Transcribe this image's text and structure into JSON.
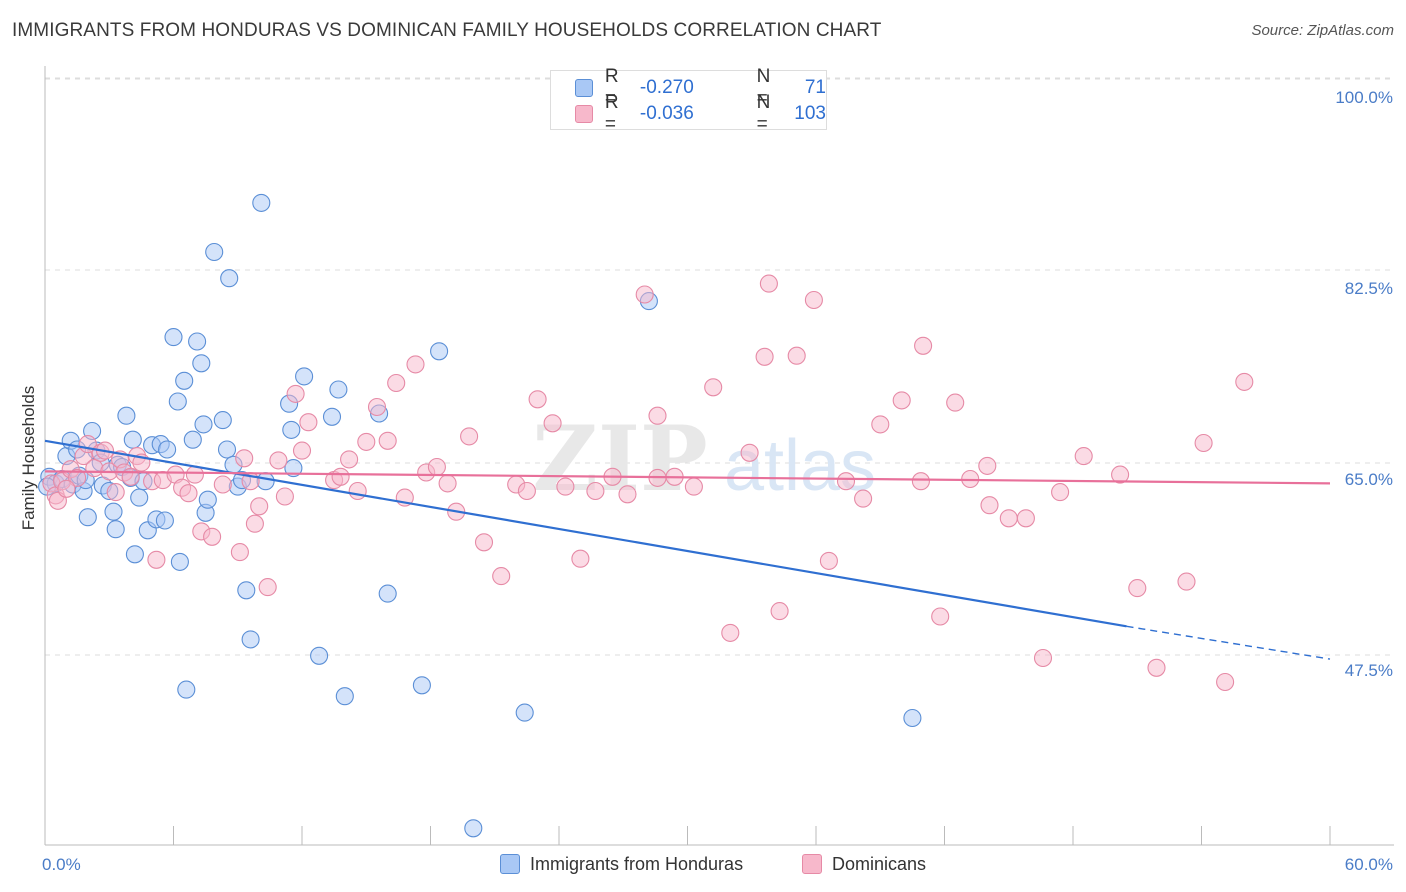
{
  "title": "IMMIGRANTS FROM HONDURAS VS DOMINICAN FAMILY HOUSEHOLDS CORRELATION CHART",
  "source": "Source: ZipAtlas.com",
  "watermark": {
    "zip": "ZIP",
    "atlas": "atlas"
  },
  "legend_top": [
    {
      "r_label": "R =",
      "r_value": "-0.270",
      "n_label": "N =",
      "n_value": "71"
    },
    {
      "r_label": "R =",
      "r_value": "-0.036",
      "n_label": "N =",
      "n_value": "103"
    }
  ],
  "legend_bottom": [
    {
      "label": "Immigrants from Honduras"
    },
    {
      "label": "Dominicans"
    }
  ],
  "colors": {
    "blue_fill": "#a9c8f5",
    "blue_stroke": "#5b8fd6",
    "blue_line": "#2f6fd1",
    "pink_fill": "#f7b8cb",
    "pink_stroke": "#e68aa6",
    "pink_line": "#e8709a",
    "tick_text": "#4a7cc7",
    "grid": "#dddddd"
  },
  "chart_data": {
    "type": "scatter",
    "title": "IMMIGRANTS FROM HONDURAS VS DOMINICAN FAMILY HOUSEHOLDS CORRELATION CHART",
    "xlabel": "",
    "ylabel": "Family Households",
    "xlim": [
      0,
      60
    ],
    "ylim": [
      30,
      103
    ],
    "x_tick_labels": [
      "0.0%",
      "60.0%"
    ],
    "y_ticks": [
      47.5,
      65.0,
      82.5,
      100.0
    ],
    "y_tick_labels": [
      "47.5%",
      "65.0%",
      "82.5%",
      "100.0%"
    ],
    "grid": true,
    "legend_placement": "top-center",
    "series": [
      {
        "name": "Immigrants from Honduras",
        "color": "#a9c8f5",
        "trend": {
          "x": [
            0,
            50.5
          ],
          "y": [
            68.5,
            51.5
          ],
          "dashed_to_x": 60,
          "dashed_to_y": 48.5
        },
        "points": [
          [
            0.2,
            65.2
          ],
          [
            0.5,
            64.6
          ],
          [
            0.8,
            65.0
          ],
          [
            1.0,
            67.1
          ],
          [
            1.2,
            68.5
          ],
          [
            1.3,
            64.5
          ],
          [
            1.5,
            67.7
          ],
          [
            1.6,
            65.3
          ],
          [
            1.8,
            63.9
          ],
          [
            1.9,
            64.9
          ],
          [
            2.0,
            61.5
          ],
          [
            2.2,
            69.4
          ],
          [
            2.4,
            67.6
          ],
          [
            2.6,
            66.5
          ],
          [
            2.7,
            64.4
          ],
          [
            3.0,
            63.9
          ],
          [
            3.2,
            62.0
          ],
          [
            3.3,
            60.4
          ],
          [
            3.4,
            66.3
          ],
          [
            3.6,
            66.1
          ],
          [
            3.8,
            70.8
          ],
          [
            4.0,
            65.1
          ],
          [
            4.1,
            68.6
          ],
          [
            4.2,
            58.1
          ],
          [
            4.4,
            63.3
          ],
          [
            4.6,
            64.8
          ],
          [
            4.8,
            60.3
          ],
          [
            5.0,
            68.1
          ],
          [
            5.2,
            61.3
          ],
          [
            5.4,
            68.2
          ],
          [
            5.6,
            61.2
          ],
          [
            5.7,
            67.7
          ],
          [
            6.0,
            78.0
          ],
          [
            6.2,
            72.1
          ],
          [
            6.3,
            57.4
          ],
          [
            6.5,
            74.0
          ],
          [
            6.6,
            45.7
          ],
          [
            6.9,
            68.6
          ],
          [
            7.1,
            77.6
          ],
          [
            7.3,
            75.6
          ],
          [
            7.4,
            70.0
          ],
          [
            7.5,
            61.9
          ],
          [
            7.6,
            63.1
          ],
          [
            7.9,
            85.8
          ],
          [
            8.3,
            70.4
          ],
          [
            8.5,
            67.7
          ],
          [
            8.6,
            83.4
          ],
          [
            8.8,
            66.3
          ],
          [
            9.0,
            64.3
          ],
          [
            9.2,
            64.9
          ],
          [
            9.4,
            54.8
          ],
          [
            9.6,
            50.3
          ],
          [
            10.1,
            90.3
          ],
          [
            10.3,
            64.8
          ],
          [
            11.4,
            71.9
          ],
          [
            11.5,
            69.5
          ],
          [
            11.6,
            66.0
          ],
          [
            12.1,
            74.4
          ],
          [
            12.8,
            48.8
          ],
          [
            13.4,
            70.7
          ],
          [
            13.7,
            73.2
          ],
          [
            14.0,
            45.1
          ],
          [
            15.6,
            71.0
          ],
          [
            16.0,
            54.5
          ],
          [
            17.6,
            46.1
          ],
          [
            20.0,
            33.0
          ],
          [
            18.4,
            76.7
          ],
          [
            22.4,
            43.6
          ],
          [
            28.2,
            81.3
          ],
          [
            40.5,
            43.1
          ],
          [
            0.1,
            64.3
          ]
        ]
      },
      {
        "name": "Dominicans",
        "color": "#f7b8cb",
        "trend": {
          "x": [
            0,
            60
          ],
          "y": [
            65.7,
            64.6
          ]
        },
        "points": [
          [
            0.3,
            64.6
          ],
          [
            0.5,
            63.5
          ],
          [
            0.8,
            64.8
          ],
          [
            1.2,
            65.9
          ],
          [
            1.5,
            65.1
          ],
          [
            1.8,
            67.1
          ],
          [
            2.0,
            68.2
          ],
          [
            2.3,
            66.0
          ],
          [
            2.6,
            67.4
          ],
          [
            2.8,
            67.6
          ],
          [
            3.0,
            65.7
          ],
          [
            3.3,
            63.8
          ],
          [
            3.5,
            66.8
          ],
          [
            3.7,
            65.6
          ],
          [
            4.0,
            65.2
          ],
          [
            4.3,
            67.1
          ],
          [
            4.5,
            66.5
          ],
          [
            5.0,
            64.8
          ],
          [
            5.2,
            57.6
          ],
          [
            5.5,
            64.9
          ],
          [
            6.1,
            65.4
          ],
          [
            6.4,
            64.2
          ],
          [
            6.7,
            63.7
          ],
          [
            7.0,
            65.4
          ],
          [
            7.3,
            60.2
          ],
          [
            7.8,
            59.7
          ],
          [
            8.3,
            64.5
          ],
          [
            9.1,
            58.3
          ],
          [
            9.3,
            66.9
          ],
          [
            9.6,
            64.8
          ],
          [
            10.0,
            62.5
          ],
          [
            10.4,
            55.1
          ],
          [
            10.9,
            66.7
          ],
          [
            11.2,
            63.4
          ],
          [
            11.7,
            72.8
          ],
          [
            12.0,
            67.6
          ],
          [
            12.3,
            70.2
          ],
          [
            13.5,
            64.9
          ],
          [
            13.8,
            65.2
          ],
          [
            14.2,
            66.8
          ],
          [
            14.6,
            63.9
          ],
          [
            15.0,
            68.4
          ],
          [
            15.5,
            71.6
          ],
          [
            16.0,
            68.5
          ],
          [
            16.4,
            73.8
          ],
          [
            16.8,
            63.3
          ],
          [
            17.3,
            75.5
          ],
          [
            17.8,
            65.6
          ],
          [
            18.3,
            66.1
          ],
          [
            18.8,
            64.6
          ],
          [
            19.2,
            62.0
          ],
          [
            19.8,
            68.9
          ],
          [
            20.5,
            59.2
          ],
          [
            21.3,
            56.1
          ],
          [
            22.0,
            64.5
          ],
          [
            22.5,
            63.9
          ],
          [
            23.0,
            72.3
          ],
          [
            23.7,
            70.1
          ],
          [
            24.3,
            64.3
          ],
          [
            25.0,
            57.7
          ],
          [
            25.7,
            63.9
          ],
          [
            26.5,
            65.2
          ],
          [
            27.2,
            63.6
          ],
          [
            28.0,
            81.9
          ],
          [
            28.6,
            65.1
          ],
          [
            29.4,
            65.2
          ],
          [
            30.3,
            64.3
          ],
          [
            31.2,
            73.4
          ],
          [
            32.0,
            50.9
          ],
          [
            32.9,
            67.4
          ],
          [
            33.6,
            76.2
          ],
          [
            34.3,
            52.9
          ],
          [
            35.1,
            76.3
          ],
          [
            35.9,
            81.4
          ],
          [
            36.6,
            57.5
          ],
          [
            37.4,
            64.8
          ],
          [
            38.2,
            63.2
          ],
          [
            39.0,
            70.0
          ],
          [
            40.0,
            72.2
          ],
          [
            40.9,
            64.8
          ],
          [
            41.8,
            52.4
          ],
          [
            42.5,
            72.0
          ],
          [
            43.2,
            65.0
          ],
          [
            44.1,
            62.6
          ],
          [
            45.0,
            61.4
          ],
          [
            45.8,
            61.4
          ],
          [
            46.6,
            48.6
          ],
          [
            47.4,
            63.8
          ],
          [
            48.5,
            67.1
          ],
          [
            50.2,
            65.4
          ],
          [
            51.0,
            55.0
          ],
          [
            51.9,
            47.7
          ],
          [
            53.3,
            55.6
          ],
          [
            54.1,
            68.3
          ],
          [
            56.0,
            73.9
          ],
          [
            55.1,
            46.4
          ],
          [
            44.0,
            66.2
          ],
          [
            28.6,
            70.8
          ],
          [
            41.0,
            77.2
          ],
          [
            33.8,
            82.9
          ],
          [
            0.6,
            63.0
          ],
          [
            1.0,
            64.1
          ],
          [
            9.8,
            60.9
          ]
        ]
      }
    ]
  }
}
